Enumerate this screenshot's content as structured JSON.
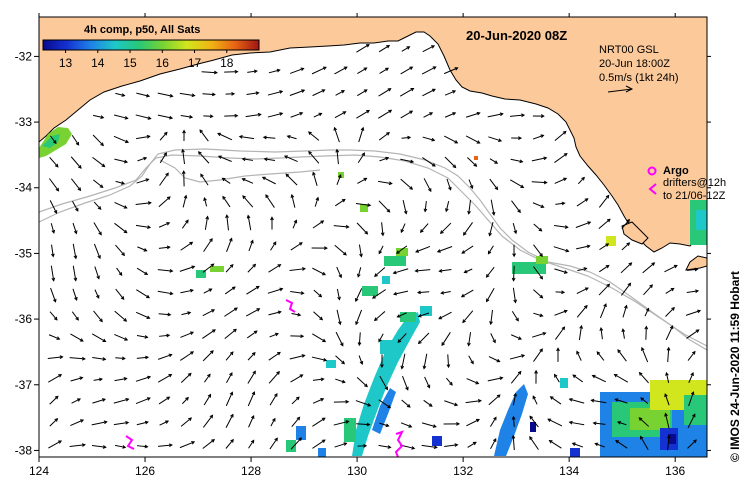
{
  "map": {
    "title": "20-Jun-2020 08Z",
    "colorbar": {
      "title": "4h comp, p50, All Sats",
      "ticks": [
        "13",
        "14",
        "15",
        "16",
        "17",
        "18"
      ],
      "min": 12.3,
      "max": 19.0,
      "colors": [
        "#0a0a8c",
        "#1432d2",
        "#1e82e6",
        "#1ec8c8",
        "#28c878",
        "#78d232",
        "#d2e61e",
        "#f0b414",
        "#e66414",
        "#a01414"
      ]
    },
    "current_info": {
      "line1": "NRT00 GSL",
      "line2": "20-Jun 18:00Z",
      "line3": "0.5m/s (1kt 24h)"
    },
    "argo_legend": {
      "argo_label": "Argo",
      "drifters_label": "drifters@12h",
      "to_label": "to 21/06-12Z"
    },
    "credit": "© IMOS 24-Jun-2020 11:59 Hobart",
    "axes": {
      "x_ticks": [
        "124",
        "126",
        "128",
        "130",
        "132",
        "134",
        "136"
      ],
      "y_ticks": [
        "-32",
        "-33",
        "-34",
        "-35",
        "-36",
        "-37",
        "-38"
      ],
      "lon_range": [
        124,
        136.6
      ],
      "lat_range": [
        -31.4,
        -38.1
      ]
    },
    "colors": {
      "land": "#fbc99a",
      "ocean": "#ffffff",
      "shelf_line": "#b4b4b4",
      "argo": "#ff00ff"
    }
  }
}
